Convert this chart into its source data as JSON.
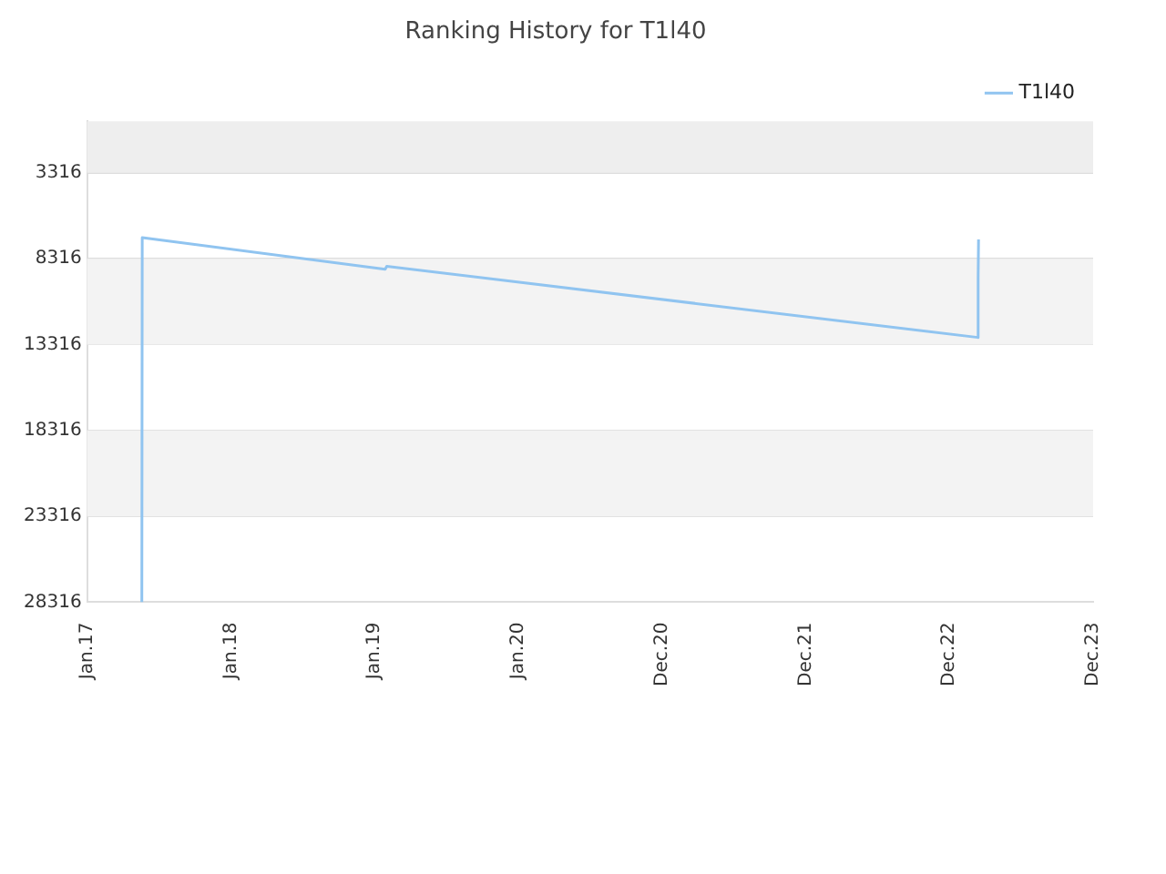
{
  "chart_data": {
    "type": "line",
    "title": "Ranking History for T1l40",
    "x": [
      "2017-05-20",
      "2017-05-21",
      "2019-01-28",
      "2019-02-01",
      "2023-03-13",
      "2023-03-14",
      "2023-03-15"
    ],
    "series": [
      {
        "name": "T1l40",
        "color": "#90c4f0",
        "values": [
          28316,
          7090,
          8930,
          8760,
          12900,
          9400,
          7200
        ]
      }
    ],
    "xlim": [
      "2017-01-01",
      "2023-12-31"
    ],
    "xticks": [
      {
        "value": "2017-01-01",
        "label": "Jan.17"
      },
      {
        "value": "2018-01-01",
        "label": "Jan.18"
      },
      {
        "value": "2019-01-01",
        "label": "Jan.19"
      },
      {
        "value": "2020-01-01",
        "label": "Jan.20"
      },
      {
        "value": "2020-12-31",
        "label": "Dec.20"
      },
      {
        "value": "2021-12-31",
        "label": "Dec.21"
      },
      {
        "value": "2022-12-31",
        "label": "Dec.22"
      },
      {
        "value": "2023-12-31",
        "label": "Dec.23"
      }
    ],
    "ylim": [
      28316,
      316
    ],
    "yticks": [
      3316,
      8316,
      13316,
      18316,
      23316,
      28316
    ],
    "bands": [
      {
        "axis": "y",
        "from": 316,
        "to": 3316,
        "color": "#eeeeee"
      },
      {
        "axis": "y",
        "from": 8316,
        "to": 13316,
        "color": "#f3f3f3"
      },
      {
        "axis": "y",
        "from": 18316,
        "to": 23316,
        "color": "#f3f3f3"
      }
    ],
    "grid": "y",
    "legend": "top right",
    "marker": "none",
    "line_style": "solid"
  }
}
